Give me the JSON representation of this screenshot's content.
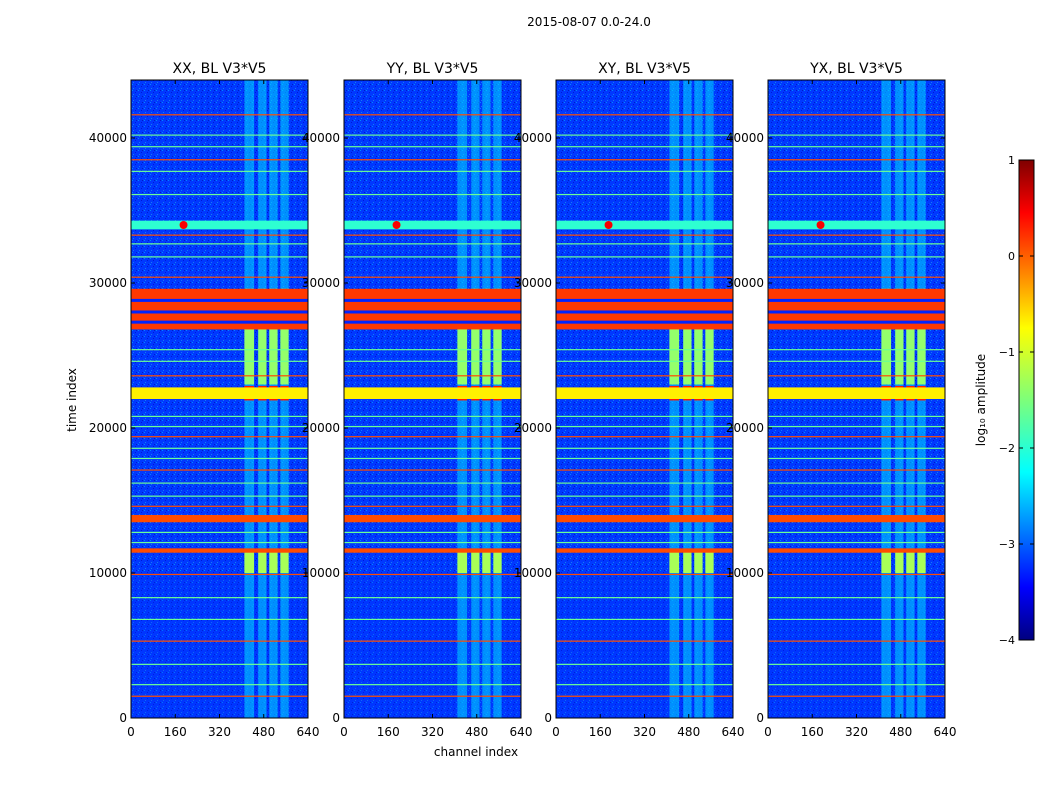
{
  "chart_data": {
    "type": "heatmap",
    "title": "2015-08-07 0.0-24.0",
    "xlabel": "channel index",
    "ylabel": "time index",
    "xlim": [
      0,
      640
    ],
    "ylim": [
      0,
      44000
    ],
    "xticks": [
      0,
      160,
      320,
      480,
      640
    ],
    "yticks": [
      0,
      10000,
      20000,
      30000,
      40000
    ],
    "colorbar": {
      "label": "log₁₀ amplitude",
      "range": [
        -4,
        1
      ],
      "ticks": [
        "1",
        "0",
        "−1",
        "−2",
        "−3",
        "−4"
      ],
      "colormap": "jet"
    },
    "panels": [
      {
        "title": "XX, BL V3*V5",
        "polarization": "XX",
        "baseline": "V3*V5"
      },
      {
        "title": "YY, BL V3*V5",
        "polarization": "YY",
        "baseline": "V3*V5"
      },
      {
        "title": "XY, BL V3*V5",
        "polarization": "XY",
        "baseline": "V3*V5"
      },
      {
        "title": "YX, BL V3*V5",
        "polarization": "YX",
        "baseline": "V3*V5"
      }
    ],
    "features": {
      "rfi_channel_range": [
        400,
        600
      ],
      "rfi_channel_strips": [
        [
          410,
          445
        ],
        [
          460,
          490
        ],
        [
          500,
          530
        ],
        [
          540,
          570
        ]
      ],
      "strong_time_bands": [
        {
          "t": [
            26800,
            29600
          ],
          "log_amp": 0.1
        },
        {
          "t": [
            22000,
            22800
          ],
          "log_amp": -0.8
        },
        {
          "t": [
            13500,
            14000
          ],
          "log_amp": 0.0
        },
        {
          "t": [
            11400,
            11700
          ],
          "log_amp": 0.0
        }
      ],
      "bright_source": {
        "channel": 190,
        "time": 34000,
        "log_amp": 0.4
      },
      "background_log_amp": -3.1
    }
  }
}
